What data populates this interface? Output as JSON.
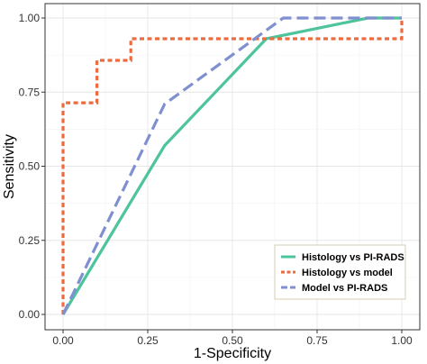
{
  "chart_data": {
    "type": "line",
    "xlabel": "1-Specificity",
    "ylabel": "Sensitivity",
    "xlim": [
      0,
      1
    ],
    "ylim": [
      0,
      1
    ],
    "grid": true,
    "legend_position": "bottom-right",
    "x_ticks": [
      {
        "value": 0,
        "label": "0.00"
      },
      {
        "value": 0.25,
        "label": "0.25"
      },
      {
        "value": 0.5,
        "label": "0.50"
      },
      {
        "value": 0.75,
        "label": "0.75"
      },
      {
        "value": 1,
        "label": "1.00"
      }
    ],
    "y_ticks": [
      {
        "value": 0,
        "label": "0.00"
      },
      {
        "value": 0.25,
        "label": "0.25"
      },
      {
        "value": 0.5,
        "label": "0.50"
      },
      {
        "value": 0.75,
        "label": "0.75"
      },
      {
        "value": 1,
        "label": "1.00"
      }
    ],
    "series": [
      {
        "name": "Histology vs PI-RADS",
        "color": "#4dc49a",
        "dash": "solid",
        "points": [
          [
            0,
            0
          ],
          [
            0.3,
            0.57
          ],
          [
            0.6,
            0.93
          ],
          [
            0.9,
            1.0
          ],
          [
            1.0,
            1.0
          ]
        ]
      },
      {
        "name": "Histology vs model",
        "color": "#ee6a3f",
        "dash": "dotted",
        "points": [
          [
            0,
            0
          ],
          [
            0,
            0.714
          ],
          [
            0.1,
            0.714
          ],
          [
            0.1,
            0.857
          ],
          [
            0.2,
            0.857
          ],
          [
            0.2,
            0.93
          ],
          [
            0.6,
            0.93
          ],
          [
            1.0,
            0.93
          ],
          [
            1.0,
            1.0
          ]
        ]
      },
      {
        "name": "Model vs PI-RADS",
        "color": "#7f8fd0",
        "dash": "dashed",
        "points": [
          [
            0,
            0
          ],
          [
            0.3,
            0.71
          ],
          [
            0.65,
            1.0
          ],
          [
            1.0,
            1.0
          ]
        ]
      }
    ]
  }
}
